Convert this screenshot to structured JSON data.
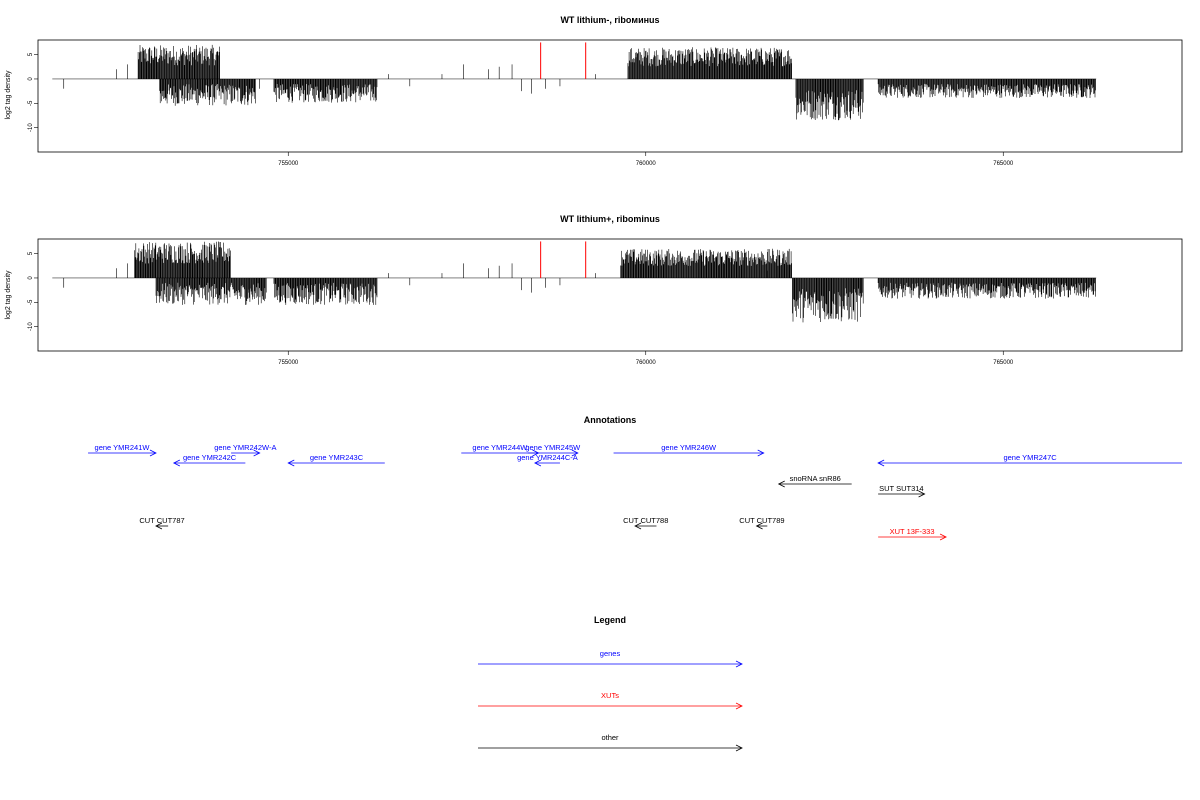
{
  "chart_data": [
    {
      "type": "bar",
      "title": "WT lithium-, riboминus",
      "ylabel": "log2 tag density",
      "xlim": [
        751500,
        767500
      ],
      "ylim": [
        -15,
        8
      ],
      "yticks": [
        5,
        0,
        -5,
        -10
      ],
      "xticks": [
        755000,
        760000,
        765000
      ],
      "regions": [
        {
          "start": 752900,
          "end": 754050,
          "min": 0.5,
          "max": 7
        },
        {
          "start": 753200,
          "end": 754550,
          "min": -8,
          "max": -1
        },
        {
          "start": 754800,
          "end": 756250,
          "min": -7,
          "max": -1
        },
        {
          "start": 759750,
          "end": 762050,
          "min": 0.5,
          "max": 6.5
        },
        {
          "start": 762100,
          "end": 763050,
          "min": -12,
          "max": -2
        },
        {
          "start": 763250,
          "end": 766300,
          "min": -5.5,
          "max": -1
        }
      ],
      "highlights": [
        {
          "x": 758530,
          "y": 7.5
        },
        {
          "x": 759160,
          "y": 7.5
        }
      ],
      "highlight_color": "#ff0000"
    },
    {
      "type": "bar",
      "title": "WT lithium+, ribominus",
      "ylabel": "log2 tag density",
      "xlim": [
        751500,
        767500
      ],
      "ylim": [
        -15,
        8
      ],
      "yticks": [
        5,
        0,
        -5,
        -10
      ],
      "xticks": [
        755000,
        760000,
        765000
      ],
      "regions": [
        {
          "start": 752850,
          "end": 754200,
          "min": 0.5,
          "max": 7.5
        },
        {
          "start": 753150,
          "end": 754700,
          "min": -8,
          "max": -1
        },
        {
          "start": 754800,
          "end": 756250,
          "min": -8,
          "max": -1
        },
        {
          "start": 759650,
          "end": 762050,
          "min": 0.5,
          "max": 6
        },
        {
          "start": 762050,
          "end": 763050,
          "min": -13,
          "max": -2
        },
        {
          "start": 763250,
          "end": 766300,
          "min": -6,
          "max": -1
        }
      ],
      "highlights": [
        {
          "x": 758530,
          "y": 7.5
        },
        {
          "x": 759160,
          "y": 7.5
        }
      ],
      "highlight_color": "#ff0000"
    }
  ],
  "annotations": {
    "title": "Annotations",
    "items": [
      {
        "label": "gene YMR241W",
        "start": 752200,
        "end": 753150,
        "row": 0,
        "strand": "+",
        "color": "#0000ff"
      },
      {
        "label": "gene YMR242C",
        "start": 753400,
        "end": 754400,
        "row": 1,
        "strand": "-",
        "color": "#0000ff"
      },
      {
        "label": "gene YMR242W-A",
        "start": 754200,
        "end": 754600,
        "row": 0,
        "strand": "+",
        "color": "#0000ff"
      },
      {
        "label": "gene YMR243C",
        "start": 755000,
        "end": 756350,
        "row": 1,
        "strand": "-",
        "color": "#0000ff"
      },
      {
        "label": "gene YMR244W",
        "start": 757420,
        "end": 758500,
        "row": 0,
        "strand": "+",
        "color": "#0000ff"
      },
      {
        "label": "gene YMR245W",
        "start": 758350,
        "end": 759050,
        "row": 0,
        "strand": "+",
        "color": "#0000ff"
      },
      {
        "label": "gene YMR244C-A",
        "start": 758450,
        "end": 758800,
        "row": 1,
        "strand": "-",
        "color": "#0000ff"
      },
      {
        "label": "gene YMR246W",
        "start": 759550,
        "end": 761650,
        "row": 0,
        "strand": "+",
        "color": "#0000ff"
      },
      {
        "label": "gene YMR247C",
        "start": 763250,
        "end": 767500,
        "row": 1,
        "strand": "-",
        "color": "#0000ff"
      },
      {
        "label": "snoRNA snR86",
        "start": 761860,
        "end": 762880,
        "row": 2,
        "strand": "-",
        "color": "#000000"
      },
      {
        "label": "SUT SUT314",
        "start": 763250,
        "end": 763900,
        "row": 3,
        "strand": "+",
        "color": "#000000"
      },
      {
        "label": "CUT CUT787",
        "start": 753150,
        "end": 753320,
        "row": 4,
        "strand": "-",
        "color": "#000000"
      },
      {
        "label": "CUT CUT788",
        "start": 759850,
        "end": 760150,
        "row": 4,
        "strand": "-",
        "color": "#000000"
      },
      {
        "label": "CUT CUT789",
        "start": 761550,
        "end": 761700,
        "row": 4,
        "strand": "-",
        "color": "#000000"
      },
      {
        "label": "XUT 13F-333",
        "start": 763250,
        "end": 764200,
        "row": 5,
        "strand": "+",
        "color": "#ff0000"
      }
    ]
  },
  "legend": {
    "title": "Legend",
    "entries": [
      {
        "label": "genes",
        "color": "#0000ff"
      },
      {
        "label": "XUTs",
        "color": "#ff0000"
      },
      {
        "label": "other",
        "color": "#000000"
      }
    ]
  }
}
